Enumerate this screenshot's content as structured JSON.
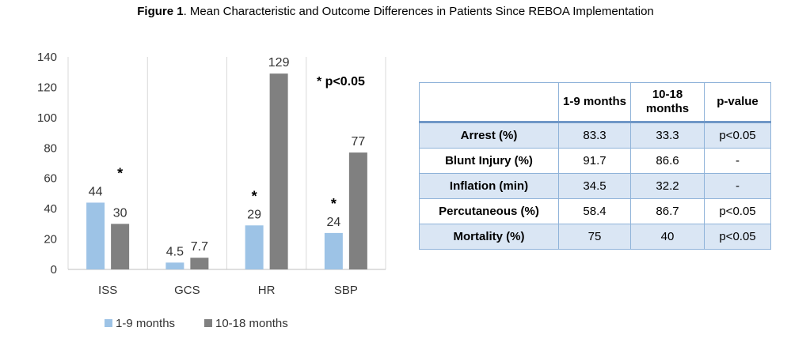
{
  "figure": {
    "title_bold": "Figure 1",
    "title_rest": ". Mean Characteristic and Outcome Differences in Patients Since REBOA Implementation"
  },
  "chart_data": {
    "type": "bar",
    "categories": [
      "ISS",
      "GCS",
      "HR",
      "SBP"
    ],
    "series": [
      {
        "name": "1-9 months",
        "values": [
          44,
          4.5,
          29,
          24
        ],
        "labels": [
          "44",
          "4.5",
          "29",
          "24"
        ],
        "color": "#9dc3e6"
      },
      {
        "name": "10-18 months",
        "values": [
          30,
          7.7,
          129,
          77
        ],
        "labels": [
          "30",
          "7.7",
          "129",
          "77"
        ],
        "color": "#808080"
      }
    ],
    "significance_marker": "*",
    "significant_categories": [
      "ISS",
      "HR",
      "SBP"
    ],
    "note": "* p<0.05",
    "yticks": [
      "0",
      "20",
      "40",
      "60",
      "80",
      "100",
      "120",
      "140"
    ],
    "ylim": [
      0,
      140
    ],
    "grid": "vertical category separators",
    "legend_position": "bottom"
  },
  "table": {
    "headers": [
      "",
      "1-9 months",
      "10-18 months",
      "p-value"
    ],
    "rows": [
      [
        "Arrest (%)",
        "83.3",
        "33.3",
        "p<0.05"
      ],
      [
        "Blunt Injury (%)",
        "91.7",
        "86.6",
        "-"
      ],
      [
        "Inflation (min)",
        "34.5",
        "32.2",
        "-"
      ],
      [
        "Percutaneous (%)",
        "58.4",
        "86.7",
        "p<0.05"
      ],
      [
        "Mortality (%)",
        "75",
        "40",
        "p<0.05"
      ]
    ]
  }
}
